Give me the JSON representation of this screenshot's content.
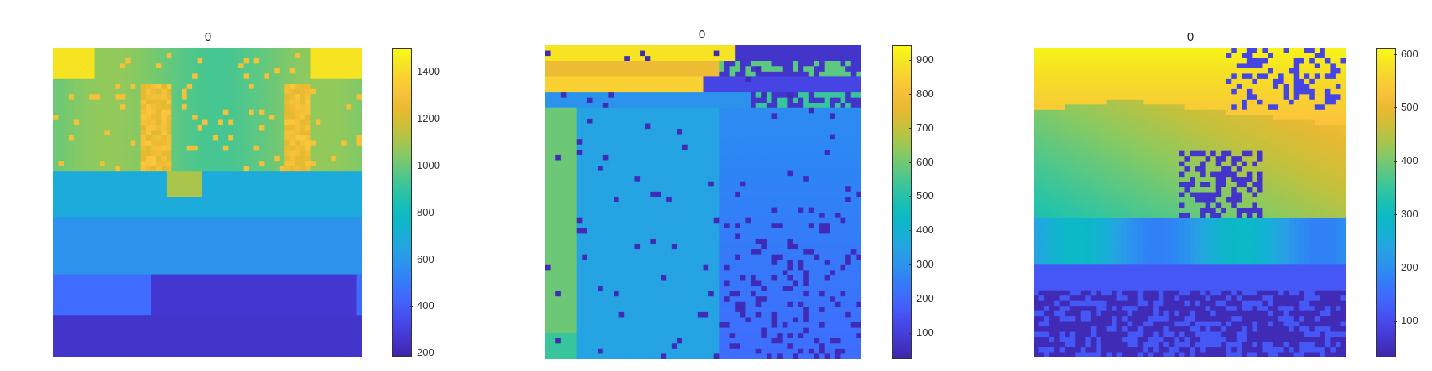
{
  "chart_data": [
    {
      "type": "heatmap",
      "title": "0",
      "colormap": "parula",
      "colorbar": {
        "ticks": [
          "1400",
          "1200",
          "1000",
          "800",
          "600",
          "400",
          "200"
        ],
        "tick_values": [
          1400,
          1200,
          1000,
          800,
          600,
          400,
          200
        ],
        "range": [
          180,
          1500
        ]
      }
    },
    {
      "type": "heatmap",
      "title": "0",
      "colormap": "parula",
      "colorbar": {
        "ticks": [
          "900",
          "800",
          "700",
          "600",
          "500",
          "400",
          "300",
          "200",
          "100"
        ],
        "tick_values": [
          900,
          800,
          700,
          600,
          500,
          400,
          300,
          200,
          100
        ],
        "range": [
          20,
          940
        ]
      }
    },
    {
      "type": "heatmap",
      "title": "0",
      "colormap": "parula",
      "colorbar": {
        "ticks": [
          "600",
          "500",
          "400",
          "300",
          "200",
          "100"
        ],
        "tick_values": [
          600,
          500,
          400,
          300,
          200,
          100
        ],
        "range": [
          30,
          610
        ]
      }
    }
  ],
  "colors": {
    "parula_low": "#3e26a8",
    "parula_mid": "#13beb8",
    "parula_high": "#f9fb15"
  }
}
